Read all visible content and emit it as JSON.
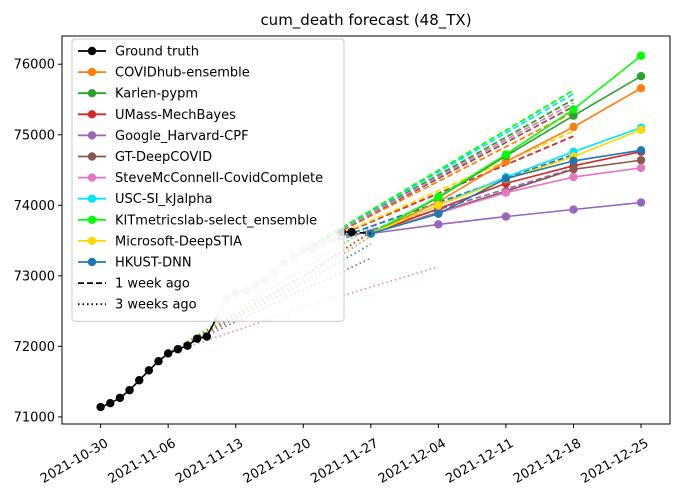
{
  "chart_data": {
    "type": "line",
    "title": "cum_death forecast (48_TX)",
    "xlabel": "",
    "ylabel": "",
    "x_ticks": [
      "2021-10-30",
      "2021-11-06",
      "2021-11-13",
      "2021-11-20",
      "2021-11-27",
      "2021-12-04",
      "2021-12-11",
      "2021-12-18",
      "2021-12-25"
    ],
    "y_ticks": [
      71000,
      72000,
      73000,
      74000,
      75000,
      76000
    ],
    "xlim": [
      "2021-10-26",
      "2021-12-28"
    ],
    "ylim": [
      70900,
      76400
    ],
    "legend_position": "upper left",
    "ground_truth_black": {
      "name": "Ground truth",
      "color": "#000000",
      "x": [
        "2021-10-30",
        "2021-10-31",
        "2021-11-01",
        "2021-11-02",
        "2021-11-03",
        "2021-11-04",
        "2021-11-05",
        "2021-11-06",
        "2021-11-07",
        "2021-11-08",
        "2021-11-09",
        "2021-11-10",
        "2021-11-11"
      ],
      "y": [
        71140,
        71195,
        71270,
        71380,
        71520,
        71660,
        71790,
        71900,
        71960,
        72010,
        72110,
        72140,
        72400
      ]
    },
    "ground_truth_gray": {
      "color": "#cccccc",
      "x": [
        "2021-11-11",
        "2021-11-12",
        "2021-11-13",
        "2021-11-14",
        "2021-11-15",
        "2021-11-16",
        "2021-11-17",
        "2021-11-18",
        "2021-11-19",
        "2021-11-20",
        "2021-11-21",
        "2021-11-22",
        "2021-11-23",
        "2021-11-24",
        "2021-11-25"
      ],
      "y": [
        72400,
        72690,
        72760,
        72790,
        72860,
        72930,
        73040,
        73180,
        73270,
        73360,
        73380,
        73460,
        73520,
        73600,
        73620
      ]
    },
    "ground_truth_late": {
      "x": [
        "2021-11-24",
        "2021-11-25",
        "2021-11-27"
      ],
      "y": [
        73620,
        73620,
        73600
      ]
    },
    "series": [
      {
        "name": "COVIDhub-ensemble",
        "color": "#ff7f0e",
        "x": [
          "2021-11-27",
          "2021-12-04",
          "2021-12-11",
          "2021-12-18",
          "2021-12-25"
        ],
        "y": [
          73600,
          74050,
          74620,
          75110,
          75660
        ]
      },
      {
        "name": "Karlen-pypm",
        "color": "#2ca02c",
        "x": [
          "2021-11-27",
          "2021-12-04",
          "2021-12-11",
          "2021-12-18",
          "2021-12-25"
        ],
        "y": [
          73600,
          74110,
          74700,
          75270,
          75830
        ]
      },
      {
        "name": "UMass-MechBayes",
        "color": "#d62728",
        "x": [
          "2021-11-27",
          "2021-12-04",
          "2021-12-11",
          "2021-12-18",
          "2021-12-25"
        ],
        "y": [
          73600,
          73950,
          74310,
          74560,
          74760
        ]
      },
      {
        "name": "Google_Harvard-CPF",
        "color": "#9467bd",
        "x": [
          "2021-11-27",
          "2021-12-04",
          "2021-12-11",
          "2021-12-18",
          "2021-12-25"
        ],
        "y": [
          73600,
          73730,
          73840,
          73940,
          74040
        ]
      },
      {
        "name": "GT-DeepCOVID",
        "color": "#8c564b",
        "x": [
          "2021-11-27",
          "2021-12-04",
          "2021-12-11",
          "2021-12-18",
          "2021-12-25"
        ],
        "y": [
          73600,
          73900,
          74200,
          74510,
          74640
        ]
      },
      {
        "name": "SteveMcConnell-CovidComplete",
        "color": "#e377c2",
        "x": [
          "2021-11-27",
          "2021-12-04",
          "2021-12-11",
          "2021-12-18",
          "2021-12-25"
        ],
        "y": [
          73600,
          73890,
          74180,
          74400,
          74530
        ]
      },
      {
        "name": "USC-SI_kJalpha",
        "color": "#00e5ff",
        "x": [
          "2021-11-27",
          "2021-12-04",
          "2021-12-11",
          "2021-12-18",
          "2021-12-25"
        ],
        "y": [
          73600,
          74000,
          74400,
          74760,
          75100
        ]
      },
      {
        "name": "KITmetricslab-select_ensemble",
        "color": "#00ff00",
        "x": [
          "2021-11-27",
          "2021-12-04",
          "2021-12-11",
          "2021-12-18",
          "2021-12-25"
        ],
        "y": [
          73600,
          74120,
          74720,
          75360,
          76120
        ]
      },
      {
        "name": "Microsoft-DeepSTIA",
        "color": "#ffd700",
        "x": [
          "2021-11-27",
          "2021-12-04",
          "2021-12-11",
          "2021-12-18",
          "2021-12-25"
        ],
        "y": [
          73600,
          74000,
          74370,
          74690,
          75070
        ]
      },
      {
        "name": "HKUST-DNN",
        "color": "#1f77b4",
        "x": [
          "2021-11-27",
          "2021-12-04",
          "2021-12-11",
          "2021-12-18",
          "2021-12-25"
        ],
        "y": [
          73600,
          73880,
          74380,
          74630,
          74780
        ]
      }
    ],
    "one_week_ago": [
      {
        "color": "#ff7f0e",
        "x": [
          "2021-11-20",
          "2021-12-18"
        ],
        "y": [
          73360,
          75320
        ]
      },
      {
        "color": "#2ca02c",
        "x": [
          "2021-11-20",
          "2021-12-18"
        ],
        "y": [
          73360,
          75500
        ]
      },
      {
        "color": "#d62728",
        "x": [
          "2021-11-20",
          "2021-12-18"
        ],
        "y": [
          73360,
          74980
        ]
      },
      {
        "color": "#9467bd",
        "x": [
          "2021-11-20",
          "2021-12-18"
        ],
        "y": [
          73360,
          74520
        ]
      },
      {
        "color": "#8c564b",
        "x": [
          "2021-11-20",
          "2021-12-18"
        ],
        "y": [
          73360,
          75400
        ]
      },
      {
        "color": "#e377c2",
        "x": [
          "2021-11-20",
          "2021-12-18"
        ],
        "y": [
          73360,
          75450
        ]
      },
      {
        "color": "#00e5ff",
        "x": [
          "2021-11-20",
          "2021-12-18"
        ],
        "y": [
          73360,
          75580
        ]
      },
      {
        "color": "#00ff00",
        "x": [
          "2021-11-20",
          "2021-12-18"
        ],
        "y": [
          73360,
          75630
        ]
      },
      {
        "color": "#ffd700",
        "x": [
          "2021-11-20",
          "2021-12-18"
        ],
        "y": [
          73360,
          75050
        ]
      },
      {
        "color": "#1f77b4",
        "x": [
          "2021-11-20",
          "2021-12-18"
        ],
        "y": [
          73360,
          74720
        ]
      }
    ],
    "three_weeks_ago": [
      {
        "color": "#e377c2",
        "x": [
          "2021-11-06",
          "2021-11-20",
          "2021-12-04"
        ],
        "y": [
          71900,
          72550,
          73130
        ]
      },
      {
        "color": "#2ca02c",
        "x": [
          "2021-11-06",
          "2021-11-20",
          "2021-11-27"
        ],
        "y": [
          71900,
          73000,
          73620
        ]
      },
      {
        "color": "#d62728",
        "x": [
          "2021-11-06",
          "2021-11-20",
          "2021-11-27"
        ],
        "y": [
          71900,
          73000,
          73620
        ]
      },
      {
        "color": "#00ff00",
        "x": [
          "2021-11-06",
          "2021-11-20",
          "2021-11-27"
        ],
        "y": [
          71900,
          73100,
          73700
        ]
      },
      {
        "color": "#ff7f0e",
        "x": [
          "2021-11-06",
          "2021-11-20",
          "2021-11-27"
        ],
        "y": [
          71900,
          72950,
          73560
        ]
      },
      {
        "color": "#1f77b4",
        "x": [
          "2021-11-06",
          "2021-11-20",
          "2021-11-27"
        ],
        "y": [
          71900,
          72900,
          73450
        ]
      },
      {
        "color": "#8c564b",
        "x": [
          "2021-11-06",
          "2021-11-20",
          "2021-11-27"
        ],
        "y": [
          71900,
          72800,
          73250
        ]
      }
    ],
    "legend": {
      "entries": [
        {
          "label": "Ground truth",
          "color": "#000000",
          "style": "solid-marker"
        },
        {
          "label": "COVIDhub-ensemble",
          "color": "#ff7f0e",
          "style": "solid-marker"
        },
        {
          "label": "Karlen-pypm",
          "color": "#2ca02c",
          "style": "solid-marker"
        },
        {
          "label": "UMass-MechBayes",
          "color": "#d62728",
          "style": "solid-marker"
        },
        {
          "label": "Google_Harvard-CPF",
          "color": "#9467bd",
          "style": "solid-marker"
        },
        {
          "label": "GT-DeepCOVID",
          "color": "#8c564b",
          "style": "solid-marker"
        },
        {
          "label": "SteveMcConnell-CovidComplete",
          "color": "#e377c2",
          "style": "solid-marker"
        },
        {
          "label": "USC-SI_kJalpha",
          "color": "#00e5ff",
          "style": "solid-marker"
        },
        {
          "label": "KITmetricslab-select_ensemble",
          "color": "#00ff00",
          "style": "solid-marker"
        },
        {
          "label": "Microsoft-DeepSTIA",
          "color": "#ffd700",
          "style": "solid-marker"
        },
        {
          "label": "HKUST-DNN",
          "color": "#1f77b4",
          "style": "solid-marker"
        },
        {
          "label": "1 week ago",
          "color": "#000000",
          "style": "dashed"
        },
        {
          "label": "3 weeks ago",
          "color": "#000000",
          "style": "dotted"
        }
      ]
    }
  }
}
